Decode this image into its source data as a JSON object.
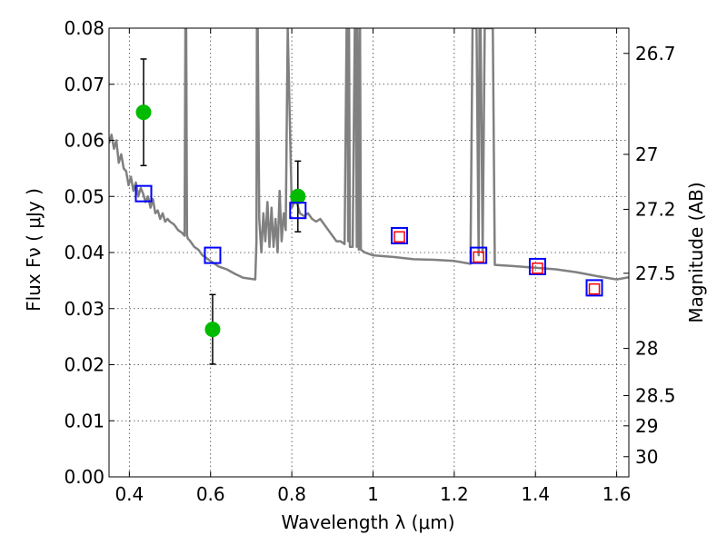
{
  "chart_data": {
    "type": "scatter",
    "title": "",
    "xlabel": "Wavelength  λ (μm)",
    "ylabel": "Flux  Fν  ( μJy )",
    "ylabel_right": "Magnitude (AB)",
    "xlim": [
      0.35,
      1.63
    ],
    "ylim": [
      0.0,
      0.08
    ],
    "grid": true,
    "x_ticks": [
      0.4,
      0.6,
      0.8,
      1.0,
      1.2,
      1.4,
      1.6
    ],
    "x_tick_labels": [
      "0.4",
      "0.6",
      "0.8",
      "1",
      "1.2",
      "1.4",
      "1.6"
    ],
    "y_ticks": [
      0.0,
      0.01,
      0.02,
      0.03,
      0.04,
      0.05,
      0.06,
      0.07,
      0.08
    ],
    "y_tick_labels": [
      "0.00",
      "0.01",
      "0.02",
      "0.03",
      "0.04",
      "0.05",
      "0.06",
      "0.07",
      "0.08"
    ],
    "right_ticks": [
      {
        "label": "26.7",
        "flux": 0.0755
      },
      {
        "label": "27",
        "flux": 0.0575
      },
      {
        "label": "27.2",
        "flux": 0.0477
      },
      {
        "label": "27.5",
        "flux": 0.0363
      },
      {
        "label": "28",
        "flux": 0.0229
      },
      {
        "label": "28.5",
        "flux": 0.0145
      },
      {
        "label": "29",
        "flux": 0.0091
      },
      {
        "label": "30",
        "flux": 0.0036
      }
    ],
    "series": [
      {
        "kind": "line",
        "color": "#808080",
        "x": [
          0.35,
          0.356,
          0.362,
          0.368,
          0.374,
          0.38,
          0.386,
          0.392,
          0.398,
          0.404,
          0.41,
          0.416,
          0.422,
          0.428,
          0.434,
          0.44,
          0.446,
          0.452,
          0.458,
          0.464,
          0.47,
          0.476,
          0.482,
          0.488,
          0.494,
          0.5,
          0.51,
          0.52,
          0.53,
          0.536,
          0.538,
          0.54,
          0.542,
          0.544,
          0.55,
          0.56,
          0.57,
          0.58,
          0.59,
          0.6,
          0.61,
          0.62,
          0.64,
          0.66,
          0.68,
          0.7,
          0.71,
          0.713,
          0.714,
          0.716,
          0.72,
          0.725,
          0.73,
          0.735,
          0.74,
          0.745,
          0.75,
          0.755,
          0.76,
          0.765,
          0.77,
          0.775,
          0.78,
          0.785,
          0.79,
          0.8,
          0.81,
          0.82,
          0.83,
          0.84,
          0.85,
          0.86,
          0.87,
          0.88,
          0.89,
          0.9,
          0.91,
          0.92,
          0.93,
          0.935,
          0.937,
          0.939,
          0.941,
          0.943,
          0.95,
          0.955,
          0.957,
          0.96,
          0.962,
          0.965,
          0.968,
          0.97,
          0.98,
          1.0,
          1.05,
          1.1,
          1.15,
          1.2,
          1.24,
          1.245,
          1.25,
          1.255,
          1.26,
          1.262,
          1.265,
          1.27,
          1.275,
          1.28,
          1.285,
          1.29,
          1.295,
          1.3,
          1.34,
          1.4,
          1.45,
          1.5,
          1.55,
          1.6,
          1.63
        ],
        "y": [
          0.0595,
          0.061,
          0.0585,
          0.06,
          0.056,
          0.0575,
          0.055,
          0.0545,
          0.052,
          0.0535,
          0.051,
          0.0525,
          0.05,
          0.0515,
          0.0505,
          0.049,
          0.05,
          0.048,
          0.0495,
          0.047,
          0.0475,
          0.046,
          0.047,
          0.0455,
          0.046,
          0.0455,
          0.045,
          0.044,
          0.0435,
          0.043,
          0.08,
          0.08,
          0.043,
          0.0425,
          0.042,
          0.041,
          0.0405,
          0.0395,
          0.039,
          0.0385,
          0.038,
          0.0375,
          0.037,
          0.0362,
          0.0355,
          0.0353,
          0.0352,
          0.042,
          0.08,
          0.08,
          0.046,
          0.04,
          0.047,
          0.042,
          0.049,
          0.041,
          0.048,
          0.041,
          0.046,
          0.04,
          0.051,
          0.042,
          0.047,
          0.044,
          0.08,
          0.048,
          0.0495,
          0.047,
          0.0465,
          0.047,
          0.046,
          0.0455,
          0.046,
          0.045,
          0.044,
          0.043,
          0.042,
          0.042,
          0.0415,
          0.08,
          0.08,
          0.042,
          0.08,
          0.041,
          0.041,
          0.08,
          0.08,
          0.041,
          0.08,
          0.0405,
          0.08,
          0.0405,
          0.04,
          0.0395,
          0.0392,
          0.0388,
          0.0387,
          0.0385,
          0.038,
          0.08,
          0.08,
          0.08,
          0.0395,
          0.08,
          0.08,
          0.04,
          0.08,
          0.08,
          0.08,
          0.08,
          0.08,
          0.0378,
          0.0376,
          0.0373,
          0.037,
          0.0365,
          0.0358,
          0.0352,
          0.0356
        ]
      },
      {
        "kind": "points",
        "color": "#00bb00",
        "marker": "filled-circle",
        "x": [
          0.435,
          0.605,
          0.815
        ],
        "y": [
          0.065,
          0.0263,
          0.05
        ],
        "yerr": [
          0.0095,
          0.0062,
          0.0063
        ]
      },
      {
        "kind": "points",
        "color": "#0000ff",
        "marker": "open-square",
        "x": [
          0.435,
          0.605,
          0.815,
          1.065,
          1.26,
          1.405,
          1.545
        ],
        "y": [
          0.0505,
          0.0395,
          0.0475,
          0.043,
          0.0395,
          0.0375,
          0.0337
        ]
      },
      {
        "kind": "points",
        "color": "#ff0000",
        "marker": "open-square-small",
        "x": [
          1.065,
          1.26,
          1.405,
          1.545
        ],
        "y": [
          0.0428,
          0.0392,
          0.0372,
          0.0335
        ]
      }
    ]
  }
}
